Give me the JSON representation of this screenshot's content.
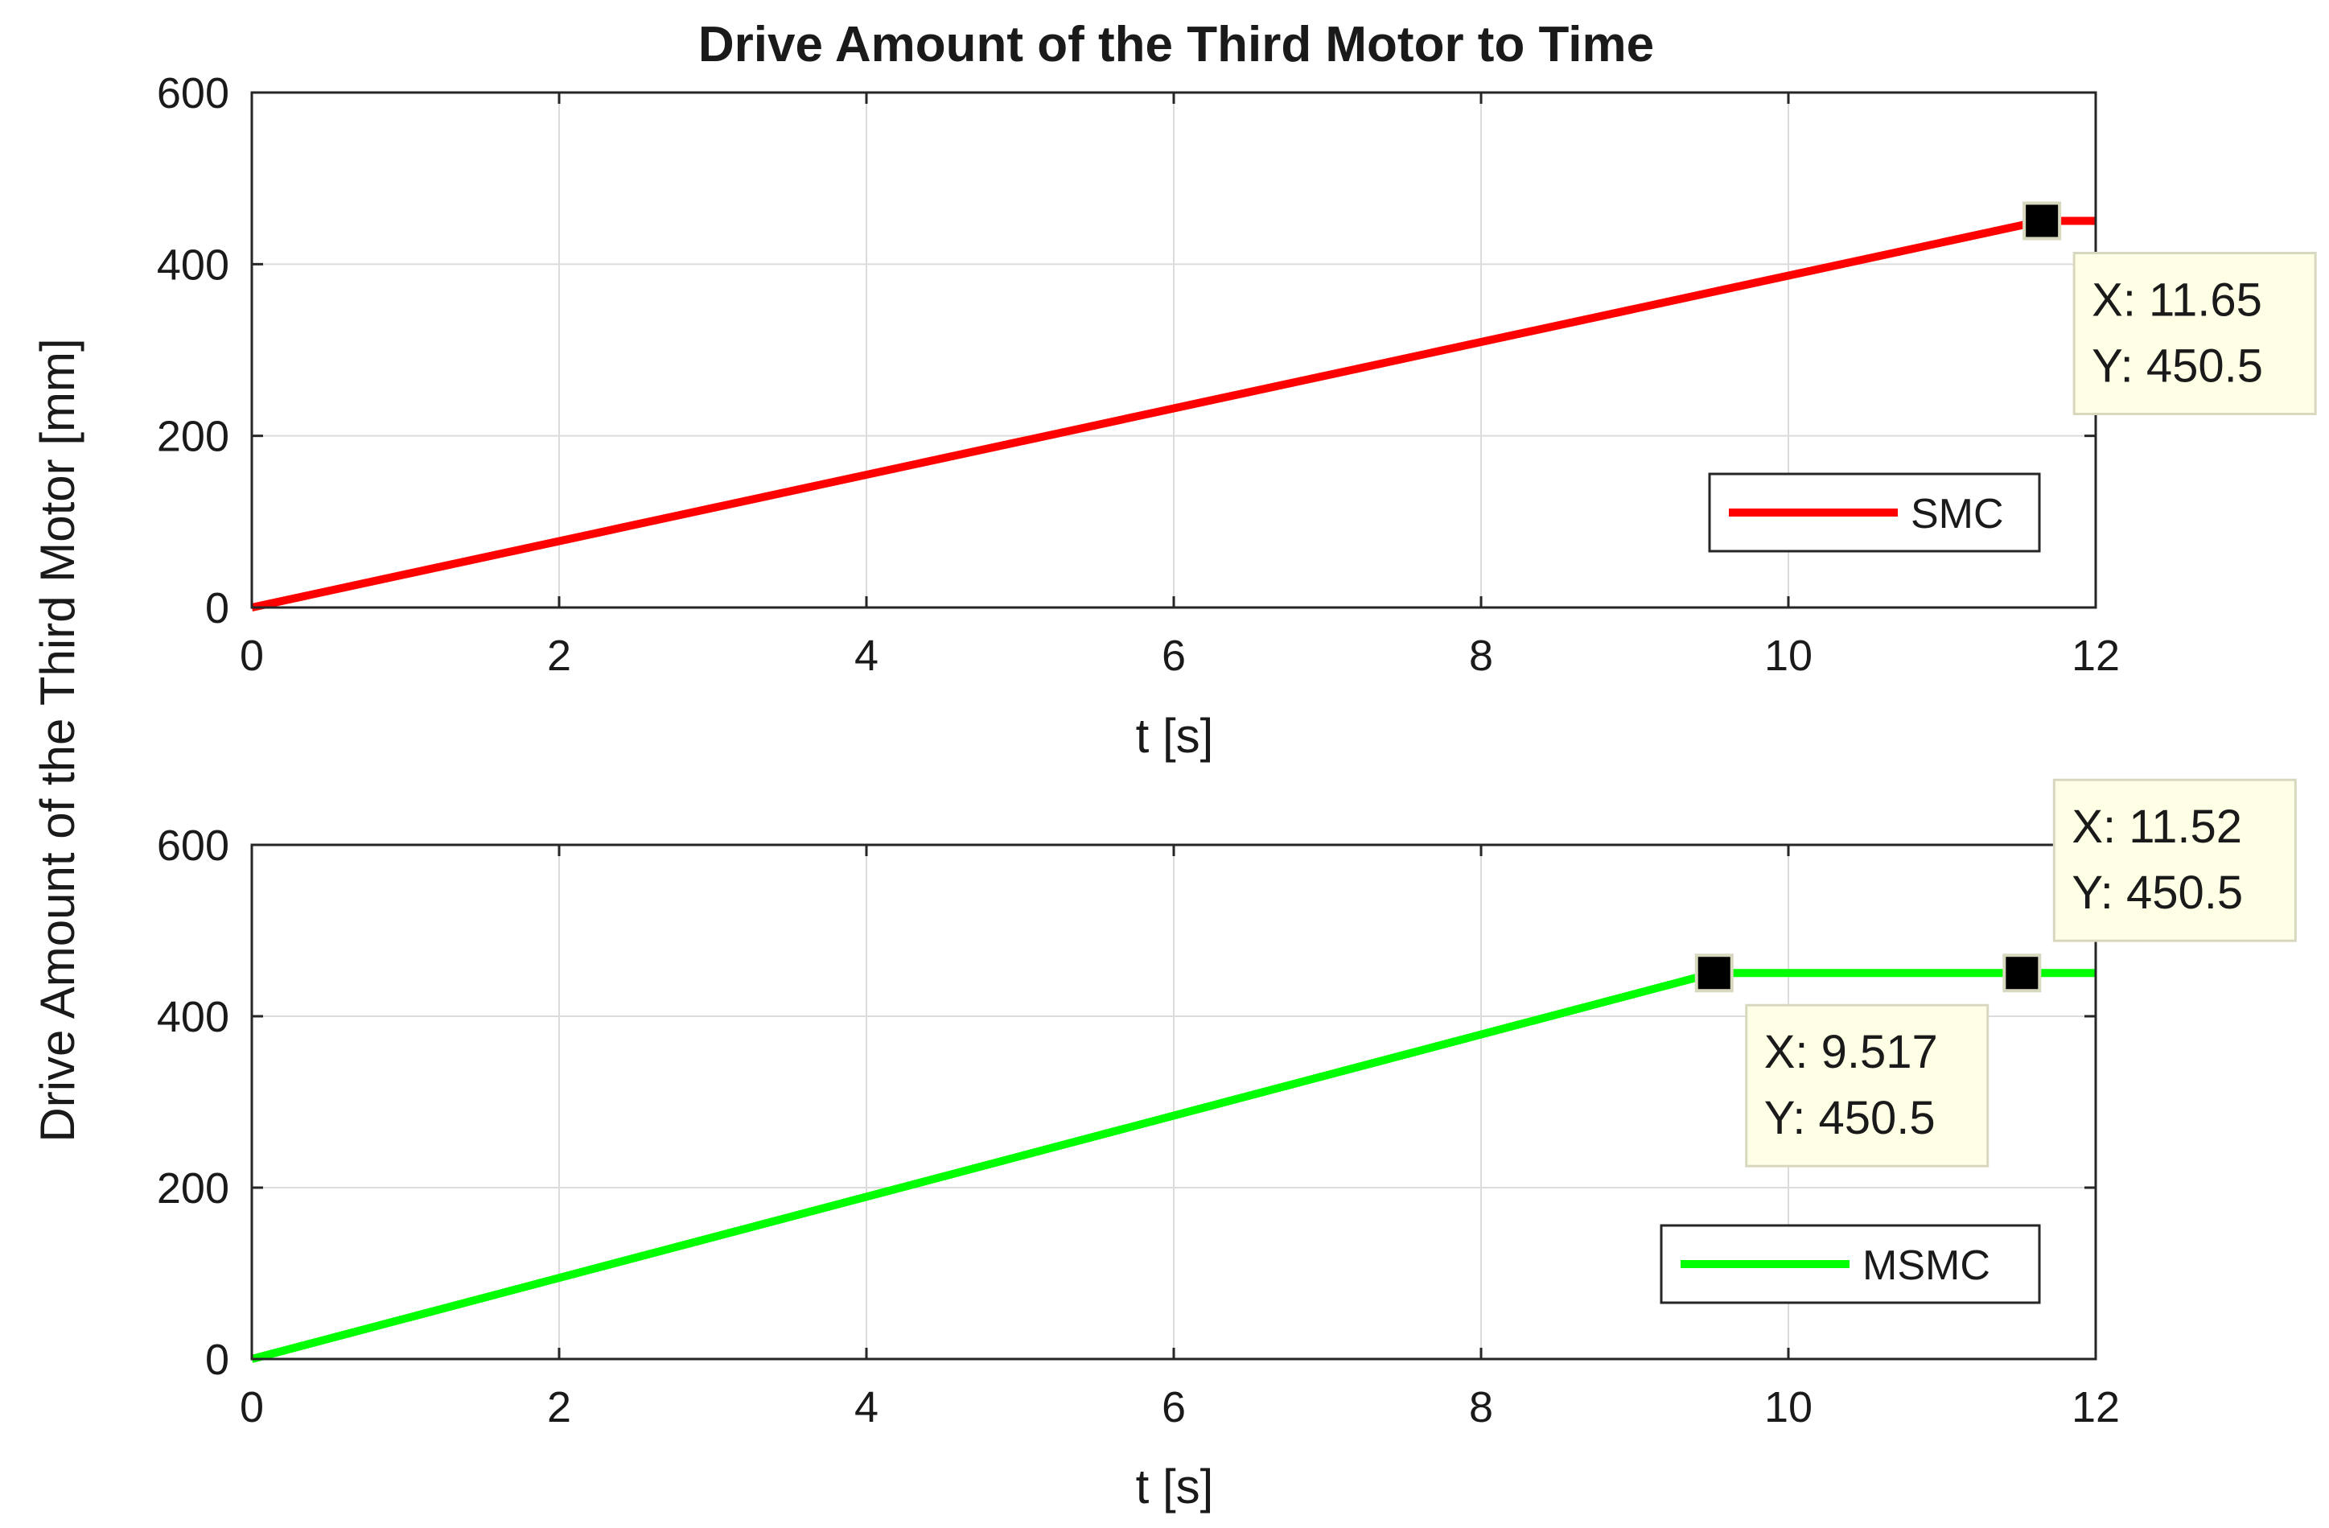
{
  "figure": {
    "title": "Drive Amount of the Third Motor to Time",
    "shared_ylabel": "Drive Amount of the Third Motor [mm]"
  },
  "chart_data": [
    {
      "type": "line",
      "xlabel": "t [s]",
      "ylabel": "Drive Amount of the Third Motor [mm]",
      "xlim": [
        0,
        12
      ],
      "ylim": [
        0,
        600
      ],
      "xticks": [
        "0",
        "2",
        "4",
        "6",
        "8",
        "10",
        "12"
      ],
      "yticks": [
        "0",
        "200",
        "400",
        "600"
      ],
      "grid": true,
      "legend_position": "bottom-right",
      "series": [
        {
          "name": "SMC",
          "color": "#ff0000",
          "x": [
            0,
            11.65,
            12
          ],
          "y": [
            0,
            450.5,
            450.5
          ]
        }
      ],
      "datatips": [
        {
          "x": 11.65,
          "y": 450.5,
          "x_label": "X: 11.65",
          "y_label": "Y: 450.5",
          "position": "below-right"
        }
      ]
    },
    {
      "type": "line",
      "xlabel": "t [s]",
      "ylabel": "",
      "xlim": [
        0,
        12
      ],
      "ylim": [
        0,
        600
      ],
      "xticks": [
        "0",
        "2",
        "4",
        "6",
        "8",
        "10",
        "12"
      ],
      "yticks": [
        "0",
        "200",
        "400",
        "600"
      ],
      "grid": true,
      "legend_position": "bottom-right",
      "series": [
        {
          "name": "MSMC",
          "color": "#00ff00",
          "x": [
            0,
            9.517,
            12
          ],
          "y": [
            0,
            450.5,
            450.5
          ]
        }
      ],
      "datatips": [
        {
          "x": 9.517,
          "y": 450.5,
          "x_label": "X: 9.517",
          "y_label": "Y: 450.5",
          "position": "below-right"
        },
        {
          "x": 11.52,
          "y": 450.5,
          "x_label": "X: 11.52",
          "y_label": "Y: 450.5",
          "position": "above-right"
        }
      ]
    }
  ]
}
